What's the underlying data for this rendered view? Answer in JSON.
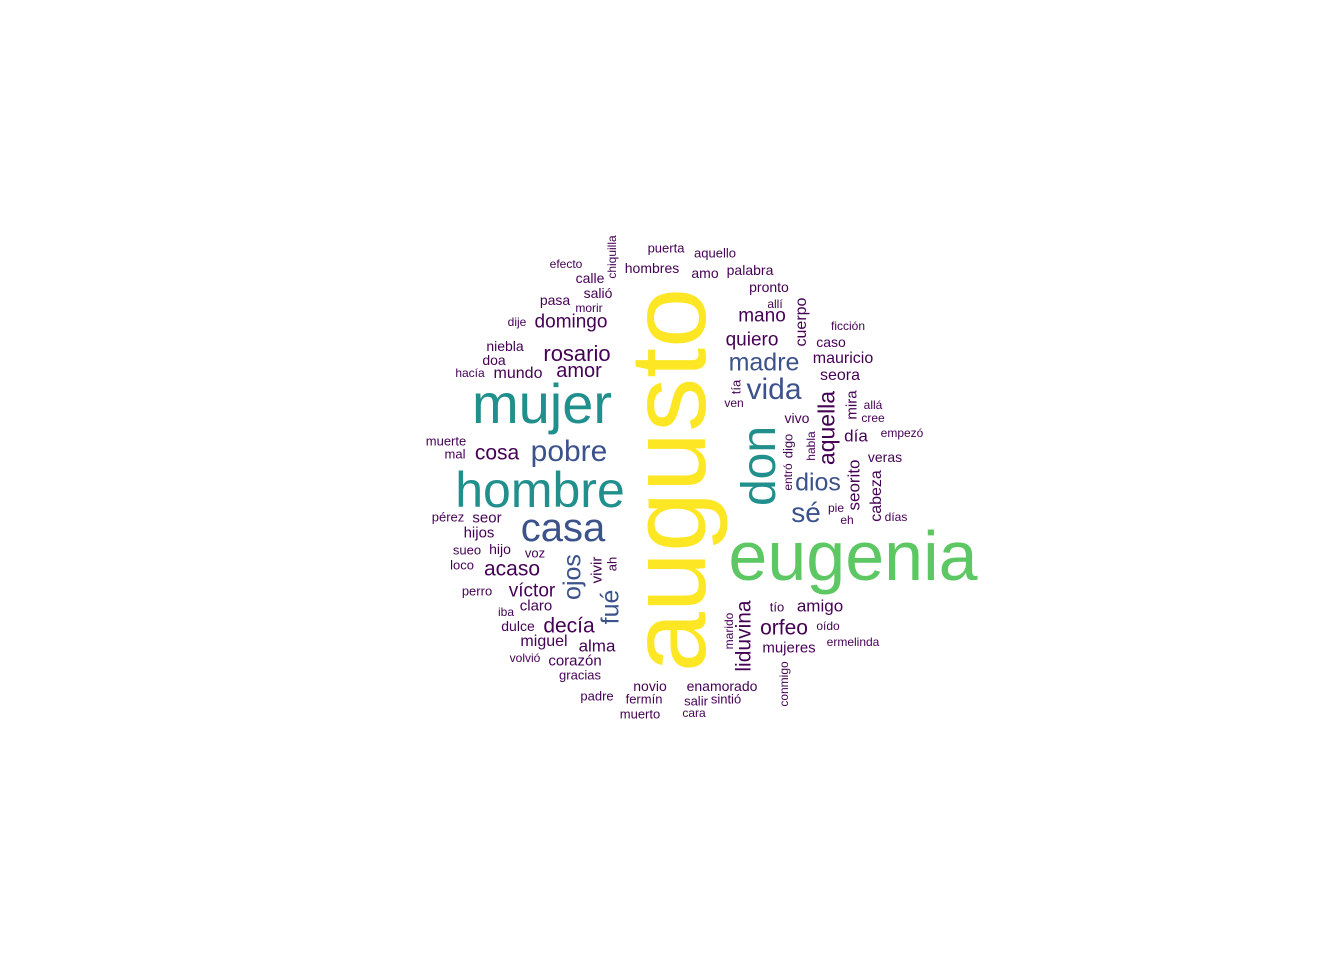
{
  "colors": {
    "c1": "#440154",
    "c2": "#3b528b",
    "c3": "#21908c",
    "c4": "#5dc863",
    "c5": "#fde725"
  },
  "words": [
    {
      "text": "augusto",
      "color": "c5"
    },
    {
      "text": "eugenia",
      "color": "c4"
    },
    {
      "text": "mujer",
      "color": "c3"
    },
    {
      "text": "hombre",
      "color": "c3"
    },
    {
      "text": "don",
      "color": "c3"
    },
    {
      "text": "casa",
      "color": "c2"
    },
    {
      "text": "pobre",
      "color": "c2"
    },
    {
      "text": "vida",
      "color": "c2"
    },
    {
      "text": "madre",
      "color": "c2"
    },
    {
      "text": "sé",
      "color": "c2"
    },
    {
      "text": "dios",
      "color": "c2"
    },
    {
      "text": "ojos",
      "color": "c2"
    },
    {
      "text": "fué",
      "color": "c2"
    },
    {
      "text": "aquella",
      "color": "c1"
    },
    {
      "text": "rosario",
      "color": "c1"
    },
    {
      "text": "liduvina",
      "color": "c1"
    },
    {
      "text": "orfeo",
      "color": "c1"
    },
    {
      "text": "decía",
      "color": "c1"
    },
    {
      "text": "acaso",
      "color": "c1"
    },
    {
      "text": "cosa",
      "color": "c1"
    },
    {
      "text": "víctor",
      "color": "c1"
    },
    {
      "text": "amor",
      "color": "c1"
    },
    {
      "text": "quiero",
      "color": "c1"
    },
    {
      "text": "domingo",
      "color": "c1"
    },
    {
      "text": "mano",
      "color": "c1"
    },
    {
      "text": "seorito",
      "color": "c1"
    },
    {
      "text": "amigo",
      "color": "c1"
    },
    {
      "text": "alma",
      "color": "c1"
    },
    {
      "text": "miguel",
      "color": "c1"
    },
    {
      "text": "día",
      "color": "c1"
    },
    {
      "text": "mauricio",
      "color": "c1"
    },
    {
      "text": "seora",
      "color": "c1"
    },
    {
      "text": "cuerpo",
      "color": "c1"
    },
    {
      "text": "cabeza",
      "color": "c1"
    },
    {
      "text": "mundo",
      "color": "c1"
    },
    {
      "text": "vivir",
      "color": "c1"
    },
    {
      "text": "mujeres",
      "color": "c1"
    },
    {
      "text": "corazón",
      "color": "c1"
    },
    {
      "text": "seor",
      "color": "c1"
    },
    {
      "text": "hijos",
      "color": "c1"
    },
    {
      "text": "mira",
      "color": "c1"
    },
    {
      "text": "veras",
      "color": "c1"
    },
    {
      "text": "niebla",
      "color": "c1"
    },
    {
      "text": "claro",
      "color": "c1"
    },
    {
      "text": "hombres",
      "color": "c1"
    },
    {
      "text": "palabra",
      "color": "c1"
    },
    {
      "text": "salió",
      "color": "c1"
    },
    {
      "text": "pasa",
      "color": "c1"
    },
    {
      "text": "pronto",
      "color": "c1"
    },
    {
      "text": "amo",
      "color": "c1"
    },
    {
      "text": "vivo",
      "color": "c1"
    },
    {
      "text": "novio",
      "color": "c1"
    },
    {
      "text": "enamorado",
      "color": "c1"
    },
    {
      "text": "hijo",
      "color": "c1"
    },
    {
      "text": "doa",
      "color": "c1"
    },
    {
      "text": "caso",
      "color": "c1"
    },
    {
      "text": "calle",
      "color": "c1"
    },
    {
      "text": "dulce",
      "color": "c1"
    },
    {
      "text": "puerta",
      "color": "c1"
    },
    {
      "text": "aquello",
      "color": "c1"
    },
    {
      "text": "digo",
      "color": "c1"
    },
    {
      "text": "tío",
      "color": "c1"
    },
    {
      "text": "tía",
      "color": "c1"
    },
    {
      "text": "ah",
      "color": "c1"
    },
    {
      "text": "sueo",
      "color": "c1"
    },
    {
      "text": "voz",
      "color": "c1"
    },
    {
      "text": "loco",
      "color": "c1"
    },
    {
      "text": "perro",
      "color": "c1"
    },
    {
      "text": "pérez",
      "color": "c1"
    },
    {
      "text": "mal",
      "color": "c1"
    },
    {
      "text": "muerte",
      "color": "c1"
    },
    {
      "text": "hacía",
      "color": "c1"
    },
    {
      "text": "dije",
      "color": "c1"
    },
    {
      "text": "morir",
      "color": "c1"
    },
    {
      "text": "efecto",
      "color": "c1"
    },
    {
      "text": "chiquilla",
      "color": "c1"
    },
    {
      "text": "allí",
      "color": "c1"
    },
    {
      "text": "ficción",
      "color": "c1"
    },
    {
      "text": "allá",
      "color": "c1"
    },
    {
      "text": "cree",
      "color": "c1"
    },
    {
      "text": "empezó",
      "color": "c1"
    },
    {
      "text": "habla",
      "color": "c1"
    },
    {
      "text": "entró",
      "color": "c1"
    },
    {
      "text": "ven",
      "color": "c1"
    },
    {
      "text": "pie",
      "color": "c1"
    },
    {
      "text": "eh",
      "color": "c1"
    },
    {
      "text": "días",
      "color": "c1"
    },
    {
      "text": "oído",
      "color": "c1"
    },
    {
      "text": "ermelinda",
      "color": "c1"
    },
    {
      "text": "marido",
      "color": "c1"
    },
    {
      "text": "conmigo",
      "color": "c1"
    },
    {
      "text": "iba",
      "color": "c1"
    },
    {
      "text": "volvió",
      "color": "c1"
    },
    {
      "text": "gracias",
      "color": "c1"
    },
    {
      "text": "padre",
      "color": "c1"
    },
    {
      "text": "fermín",
      "color": "c1"
    },
    {
      "text": "muerto",
      "color": "c1"
    },
    {
      "text": "salir",
      "color": "c1"
    },
    {
      "text": "sintió",
      "color": "c1"
    },
    {
      "text": "cara",
      "color": "c1"
    }
  ]
}
